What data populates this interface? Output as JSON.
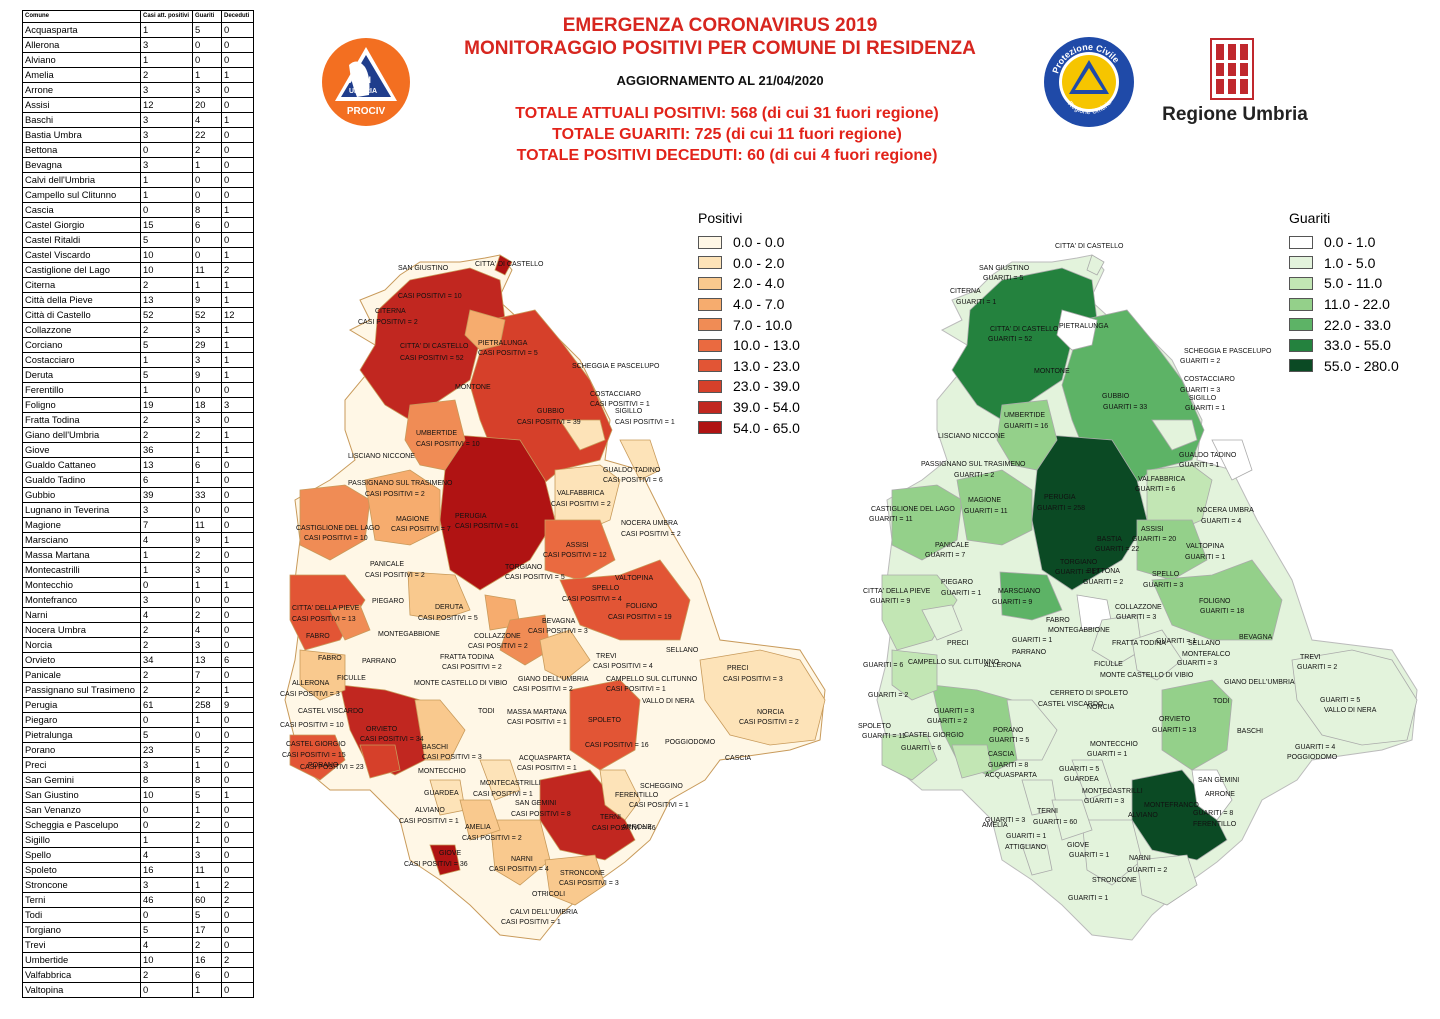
{
  "header": {
    "title_line1": "EMERGENZA CORONAVIRUS 2019",
    "title_line2": "MONITORAGGIO POSITIVI PER COMUNE DI RESIDENZA",
    "update": "AGGIORNAMENTO AL 21/04/2020",
    "totals": [
      "TOTALE ATTUALI POSITIVI: 568 (di cui 31 fuori regione)",
      "TOTALE GUARITI: 725 (di cui 11 fuori regione)",
      "TOTALE POSITIVI DECEDUTI: 60 (di cui 4 fuori regione)"
    ]
  },
  "logos": {
    "anci": {
      "text1": "ANCI",
      "text2": "UMBRIA",
      "text3": "PROCIV",
      "color": "#f36f21"
    },
    "protezione_civile": {
      "top": "Protezione Civile",
      "bottom": "Regione Umbria",
      "ring": "#1f4aa8"
    },
    "regione": {
      "label": "Regione Umbria",
      "color": "#c0282d"
    }
  },
  "table": {
    "headers": [
      "Comune",
      "Casi att. positivi",
      "Guariti",
      "Deceduti"
    ],
    "rows": [
      [
        "Acquasparta",
        "1",
        "5",
        "0"
      ],
      [
        "Allerona",
        "3",
        "0",
        "0"
      ],
      [
        "Alviano",
        "1",
        "0",
        "0"
      ],
      [
        "Amelia",
        "2",
        "1",
        "1"
      ],
      [
        "Arrone",
        "3",
        "3",
        "0"
      ],
      [
        "Assisi",
        "12",
        "20",
        "0"
      ],
      [
        "Baschi",
        "3",
        "4",
        "1"
      ],
      [
        "Bastia Umbra",
        "3",
        "22",
        "0"
      ],
      [
        "Bettona",
        "0",
        "2",
        "0"
      ],
      [
        "Bevagna",
        "3",
        "1",
        "0"
      ],
      [
        "Calvi dell'Umbria",
        "1",
        "0",
        "0"
      ],
      [
        "Campello sul Clitunno",
        "1",
        "0",
        "0"
      ],
      [
        "Cascia",
        "0",
        "8",
        "1"
      ],
      [
        "Castel Giorgio",
        "15",
        "6",
        "0"
      ],
      [
        "Castel Ritaldi",
        "5",
        "0",
        "0"
      ],
      [
        "Castel Viscardo",
        "10",
        "0",
        "1"
      ],
      [
        "Castiglione del Lago",
        "10",
        "11",
        "2"
      ],
      [
        "Citerna",
        "2",
        "1",
        "1"
      ],
      [
        "Città  della Pieve",
        "13",
        "9",
        "1"
      ],
      [
        "Città  di Castello",
        "52",
        "52",
        "12"
      ],
      [
        "Collazzone",
        "2",
        "3",
        "1"
      ],
      [
        "Corciano",
        "5",
        "29",
        "1"
      ],
      [
        "Costacciaro",
        "1",
        "3",
        "1"
      ],
      [
        "Deruta",
        "5",
        "9",
        "1"
      ],
      [
        "Ferentillo",
        "1",
        "0",
        "0"
      ],
      [
        "Foligno",
        "19",
        "18",
        "3"
      ],
      [
        "Fratta Todina",
        "2",
        "3",
        "0"
      ],
      [
        "Giano dell'Umbria",
        "2",
        "2",
        "1"
      ],
      [
        "Giove",
        "36",
        "1",
        "1"
      ],
      [
        "Gualdo Cattaneo",
        "13",
        "6",
        "0"
      ],
      [
        "Gualdo Tadino",
        "6",
        "1",
        "0"
      ],
      [
        "Gubbio",
        "39",
        "33",
        "0"
      ],
      [
        "Lugnano in Teverina",
        "3",
        "0",
        "0"
      ],
      [
        "Magione",
        "7",
        "11",
        "0"
      ],
      [
        "Marsciano",
        "4",
        "9",
        "1"
      ],
      [
        "Massa Martana",
        "1",
        "2",
        "0"
      ],
      [
        "Montecastrilli",
        "1",
        "3",
        "0"
      ],
      [
        "Montecchio",
        "0",
        "1",
        "1"
      ],
      [
        "Montefranco",
        "3",
        "0",
        "0"
      ],
      [
        "Narni",
        "4",
        "2",
        "0"
      ],
      [
        "Nocera Umbra",
        "2",
        "4",
        "0"
      ],
      [
        "Norcia",
        "2",
        "3",
        "0"
      ],
      [
        "Orvieto",
        "34",
        "13",
        "6"
      ],
      [
        "Panicale",
        "2",
        "7",
        "0"
      ],
      [
        "Passignano sul Trasimeno",
        "2",
        "2",
        "1"
      ],
      [
        "Perugia",
        "61",
        "258",
        "9"
      ],
      [
        "Piegaro",
        "0",
        "1",
        "0"
      ],
      [
        "Pietralunga",
        "5",
        "0",
        "0"
      ],
      [
        "Porano",
        "23",
        "5",
        "2"
      ],
      [
        "Preci",
        "3",
        "1",
        "0"
      ],
      [
        "San Gemini",
        "8",
        "8",
        "0"
      ],
      [
        "San Giustino",
        "10",
        "5",
        "1"
      ],
      [
        "San Venanzo",
        "0",
        "1",
        "0"
      ],
      [
        "Scheggia e Pascelupo",
        "0",
        "2",
        "0"
      ],
      [
        "Sigillo",
        "1",
        "1",
        "0"
      ],
      [
        "Spello",
        "4",
        "3",
        "0"
      ],
      [
        "Spoleto",
        "16",
        "11",
        "0"
      ],
      [
        "Stroncone",
        "3",
        "1",
        "2"
      ],
      [
        "Terni",
        "46",
        "60",
        "2"
      ],
      [
        "Todi",
        "0",
        "5",
        "0"
      ],
      [
        "Torgiano",
        "5",
        "17",
        "0"
      ],
      [
        "Trevi",
        "4",
        "2",
        "0"
      ],
      [
        "Umbertide",
        "10",
        "16",
        "2"
      ],
      [
        "Valfabbrica",
        "2",
        "6",
        "0"
      ],
      [
        "Valtopina",
        "0",
        "1",
        "0"
      ]
    ]
  },
  "legend_positivi": {
    "title": "Positivi",
    "items": [
      {
        "label": "0.0 - 0.0",
        "color": "#fff7e6"
      },
      {
        "label": "0.0 - 2.0",
        "color": "#fde3b8"
      },
      {
        "label": "2.0 - 4.0",
        "color": "#f9c98e"
      },
      {
        "label": "4.0 - 7.0",
        "color": "#f6ac6e"
      },
      {
        "label": "7.0 - 10.0",
        "color": "#f08c55"
      },
      {
        "label": "10.0 - 13.0",
        "color": "#ea6a40"
      },
      {
        "label": "13.0 - 23.0",
        "color": "#e25535"
      },
      {
        "label": "23.0 - 39.0",
        "color": "#d6402a"
      },
      {
        "label": "39.0 - 54.0",
        "color": "#c12720"
      },
      {
        "label": "54.0 - 65.0",
        "color": "#b01313"
      }
    ]
  },
  "legend_guariti": {
    "title": "Guariti",
    "items": [
      {
        "label": "0.0 - 1.0",
        "color": "#ffffff"
      },
      {
        "label": "1.0 - 5.0",
        "color": "#e3f3dc"
      },
      {
        "label": "5.0 - 11.0",
        "color": "#c2e6b4"
      },
      {
        "label": "11.0 - 22.0",
        "color": "#94d08a"
      },
      {
        "label": "22.0 - 33.0",
        "color": "#5db366"
      },
      {
        "label": "33.0 - 55.0",
        "color": "#24823e"
      },
      {
        "label": "55.0 - 280.0",
        "color": "#0b4a24"
      }
    ]
  },
  "map_positivi": {
    "labels": [
      "CITTA' DI CASTELLO",
      "SAN GIUSTINO",
      "CASI POSITIVI = 10",
      "CITERNA",
      "CASI POSITIVI = 2",
      "CITTA' DI CASTELLO",
      "CASI POSITIVI = 52",
      "PIETRALUNGA",
      "CASI POSITIVI = 5",
      "MONTONE",
      "SCHEGGIA E PASCELUPO",
      "COSTACCIARO",
      "CASI POSITIVI = 1",
      "SIGILLO",
      "CASI POSITIVI = 1",
      "GUBBIO",
      "CASI POSITIVI = 39",
      "UMBERTIDE",
      "CASI POSITIVI = 10",
      "LISCIANO NICCONE",
      "GUALDO TADINO",
      "CASI POSITIVI = 6",
      "PASSIGNANO SUL TRASIMENO",
      "CASI POSITIVI = 2",
      "VALFABBRICA",
      "CASI POSITIVI = 2",
      "PERUGIA",
      "CASI POSITIVI = 61",
      "MAGIONE",
      "CASI POSITIVI = 7",
      "CASTIGLIONE DEL LAGO",
      "CASI POSITIVI = 10",
      "NOCERA UMBRA",
      "CASI POSITIVI = 2",
      "ASSISI",
      "CASI POSITIVI = 12",
      "PANICALE",
      "CASI POSITIVI = 2",
      "TORGIANO",
      "CASI POSITIVI = 5",
      "VALTOPINA",
      "CITTA' DELLA PIEVE",
      "CASI POSITIVI = 13",
      "PIEGARO",
      "DERUTA",
      "CASI POSITIVI = 5",
      "SPELLO",
      "CASI POSITIVI = 4",
      "FOLIGNO",
      "CASI POSITIVI = 19",
      "FABRO",
      "MONTEGABBIONE",
      "BEVAGNA",
      "CASI POSITIVI = 3",
      "COLLAZZONE",
      "CASI POSITIVI = 2",
      "SELLANO",
      "FABRO",
      "PARRANO",
      "FRATTA TODINA",
      "CASI POSITIVI = 2",
      "TREVI",
      "CASI POSITIVI = 4",
      "PRECI",
      "CASI POSITIVI = 3",
      "ALLERONA",
      "CASI POSITIVI = 3",
      "FICULLE",
      "MONTE CASTELLO DI VIBIO",
      "GIANO DELL'UMBRIA",
      "CASI POSITIVI = 2",
      "CAMPELLO SUL CLITUNNO",
      "CASI POSITIVI = 1",
      "TODI",
      "CASTEL VISCARDO",
      "CASI POSITIVI = 10",
      "ORVIETO",
      "CASI POSITIVI = 34",
      "MASSA MARTANA",
      "CASI POSITIVI = 1",
      "NORCIA",
      "CASI POSITIVI = 2",
      "SPOLETO",
      "CASI POSITIVI = 16",
      "VALLO DI NERA",
      "CASTEL GIORGIO",
      "CASI POSITIVI = 15",
      "PORANO",
      "CASI POSITIVI = 23",
      "BASCHI",
      "CASI POSITIVI = 3",
      "POGGIODOMO",
      "CASCIA",
      "MONTECCHIO",
      "ACQUASPARTA",
      "CASI POSITIVI = 1",
      "GUARDEA",
      "MONTECASTRILLI",
      "CASI POSITIVI = 1",
      "SCHEGGINO",
      "FERENTILLO",
      "CASI POSITIVI = 1",
      "ALVIANO",
      "CASI POSITIVI = 1",
      "SAN GEMINI",
      "CASI POSITIVI = 8",
      "TERNI",
      "CASI POSITIVI = 46",
      "ARRONE",
      "AMELIA",
      "CASI POSITIVI = 2",
      "GIOVE",
      "CASI POSITIVI = 36",
      "NARNI",
      "CASI POSITIVI = 4",
      "STRONCONE",
      "CASI POSITIVI = 3",
      "OTRICOLI",
      "CALVI DELL'UMBRIA",
      "CASI POSITIVI = 1"
    ]
  },
  "map_guariti": {
    "labels": [
      "CITTA' DI CASTELLO",
      "SAN GIUSTINO",
      "GUARITI = 5",
      "CITERNA",
      "GUARITI = 1",
      "CITTA' DI CASTELLO",
      "GUARITI = 52",
      "PIETRALUNGA",
      "MONTONE",
      "SCHEGGIA E PASCELUPO",
      "GUARITI = 2",
      "COSTACCIARO",
      "GUARITI = 3",
      "SIGILLO",
      "GUARITI = 1",
      "GUBBIO",
      "GUARITI = 33",
      "UMBERTIDE",
      "GUARITI = 16",
      "LISCIANO NICCONE",
      "GUALDO TADINO",
      "GUARITI = 1",
      "PASSIGNANO SUL TRASIMENO",
      "GUARITI = 2",
      "VALFABBRICA",
      "GUARITI = 6",
      "MAGIONE",
      "GUARITI = 11",
      "PERUGIA",
      "GUARITI = 258",
      "CASTIGLIONE DEL LAGO",
      "GUARITI = 11",
      "NOCERA UMBRA",
      "GUARITI = 4",
      "ASSISI",
      "GUARITI = 20",
      "BASTIA",
      "GUARITI = 22",
      "PANICALE",
      "GUARITI = 7",
      "VALTOPINA",
      "GUARITI = 1",
      "TORGIANO",
      "GUARITI = 17",
      "BETTONA",
      "GUARITI = 2",
      "SPELLO",
      "GUARITI = 3",
      "PIEGARO",
      "GUARITI = 1",
      "CITTA' DELLA PIEVE",
      "GUARITI = 9",
      "MARSCIANO",
      "GUARITI = 9",
      "FOLIGNO",
      "GUARITI = 18",
      "FABRO",
      "MONTEGABBIONE",
      "COLLAZZONE",
      "GUARITI = 3",
      "BEVAGNA",
      "GUARITI = 1",
      "SELLANO",
      "MONTEFALCO",
      "TREVI",
      "GUARITI = 2",
      "PRECI",
      "GUARITI = 1",
      "PARRANO",
      "FRATTA TODINA",
      "GUARITI = 3",
      "GUARITI = 6",
      "CAMPELLO SUL CLITUNNO",
      "ALLERONA",
      "FICULLE",
      "MONTE CASTELLO DI VIBIO",
      "GIANO DELL'UMBRIA",
      "GUARITI = 2",
      "CERRETO DI SPOLETO",
      "CASTEL VISCARDO",
      "TODI",
      "GUARITI = 5",
      "VALLO DI NERA",
      "NORCIA",
      "GUARITI = 3",
      "GUARITI = 2",
      "ORVIETO",
      "GUARITI = 13",
      "SPOLETO",
      "GUARITI = 11",
      "CASTEL GIORGIO",
      "GUARITI = 6",
      "PORANO",
      "GUARITI = 5",
      "BASCHI",
      "GUARITI = 4",
      "POGGIODOMO",
      "CASCIA",
      "GUARITI = 8",
      "MONTECCHIO",
      "GUARITI = 1",
      "ACQUASPARTA",
      "GUARITI = 5",
      "GUARDEA",
      "MONTECASTRILLI",
      "GUARITI = 3",
      "SAN GEMINI",
      "GUARITI = 8",
      "FERENTILLO",
      "ARRONE",
      "GUARITI = 3",
      "MONTEFRANCO",
      "ALVIANO",
      "TERNI",
      "GUARITI = 60",
      "AMELIA",
      "GUARITI = 1",
      "ATTIGLIANO",
      "GIOVE",
      "GUARITI = 1",
      "NARNI",
      "GUARITI = 2",
      "STRONCONE",
      "GUARITI = 1",
      "OTRICOLI",
      "CALVI DELL'UMBRIA"
    ]
  }
}
